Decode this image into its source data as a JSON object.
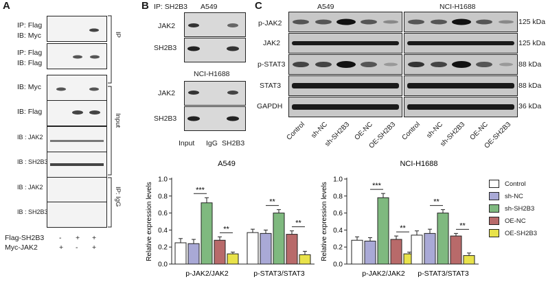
{
  "panels": {
    "a": "A",
    "b": "B",
    "c": "C"
  },
  "panelA": {
    "rows": [
      {
        "l1": "IP: Flag",
        "l2": "IB: Myc"
      },
      {
        "l1": "IP: Flag",
        "l2": "IB: Flag"
      },
      {
        "l1": "IB: Myc",
        "l2": ""
      },
      {
        "l1": "IB: Flag",
        "l2": ""
      },
      {
        "l1": "IB : JAK2",
        "l2": ""
      },
      {
        "l1": "IB : SH2B3",
        "l2": ""
      },
      {
        "l1": "IB : JAK2",
        "l2": ""
      },
      {
        "l1": "IB : SH2B3",
        "l2": ""
      }
    ],
    "bracket_ip": "IP",
    "bracket_input": "Input",
    "bracket_igg": "IP: IgG",
    "flag_label": "Flag-SH2B3",
    "myc_label": "Myc-JAK2",
    "flag_signs": [
      "-",
      "+",
      "+"
    ],
    "myc_signs": [
      "+",
      "-",
      "+"
    ]
  },
  "panelB": {
    "header": "IP: SH2B3",
    "cell1": "A549",
    "cell2": "NCI-H1688",
    "rows": [
      "JAK2",
      "SH2B3"
    ],
    "lanes": [
      "Input",
      "IgG",
      "SH2B3"
    ]
  },
  "panelC": {
    "cell1": "A549",
    "cell2": "NCI-H1688",
    "rows": [
      "p-JAK2",
      "JAK2",
      "p-STAT3",
      "STAT3",
      "GAPDH"
    ],
    "sizes": [
      "125 kDa",
      "125 kDa",
      "88 kDa",
      "88 kDa",
      "36 kDa"
    ],
    "lanes": [
      "Control",
      "sh-NC",
      "sh-SH2B3",
      "OE-NC",
      "OE-SH2B3"
    ]
  },
  "legend": [
    {
      "name": "Control",
      "color": "#ffffff"
    },
    {
      "name": "sh-NC",
      "color": "#a9a9d6"
    },
    {
      "name": "sh-SH2B3",
      "color": "#7fb97f"
    },
    {
      "name": "OE-NC",
      "color": "#b86a6a"
    },
    {
      "name": "OE-SH2B3",
      "color": "#e8e24a"
    }
  ],
  "chart_data": [
    {
      "type": "bar",
      "title": "A549",
      "ylabel": "Relative expression levels",
      "ylim": [
        0,
        1.0
      ],
      "yticks": [
        "0.0",
        "0.2",
        "0.4",
        "0.6",
        "0.8",
        "1.0"
      ],
      "categories": [
        "p-JAK2/JAK2",
        "p-STAT3/STAT3"
      ],
      "series": [
        {
          "name": "Control",
          "values": [
            0.25,
            0.37
          ]
        },
        {
          "name": "sh-NC",
          "values": [
            0.24,
            0.36
          ]
        },
        {
          "name": "sh-SH2B3",
          "values": [
            0.72,
            0.6
          ]
        },
        {
          "name": "OE-NC",
          "values": [
            0.28,
            0.35
          ]
        },
        {
          "name": "OE-SH2B3",
          "values": [
            0.12,
            0.11
          ]
        }
      ],
      "errors": [
        [
          0.05,
          0.04
        ],
        [
          0.05,
          0.04
        ],
        [
          0.06,
          0.04
        ],
        [
          0.04,
          0.04
        ],
        [
          0.02,
          0.04
        ]
      ],
      "annotations": [
        "***",
        "**",
        "**",
        "**"
      ]
    },
    {
      "type": "bar",
      "title": "NCI-H1688",
      "ylabel": "Relative expression levels",
      "ylim": [
        0,
        1.0
      ],
      "yticks": [
        "0.0",
        "0.2",
        "0.4",
        "0.6",
        "0.8",
        "1.0"
      ],
      "categories": [
        "p-JAK2/JAK2",
        "p-STAT3/STAT3"
      ],
      "series": [
        {
          "name": "Control",
          "values": [
            0.28,
            0.34
          ]
        },
        {
          "name": "sh-NC",
          "values": [
            0.27,
            0.36
          ]
        },
        {
          "name": "sh-SH2B3",
          "values": [
            0.78,
            0.6
          ]
        },
        {
          "name": "OE-NC",
          "values": [
            0.29,
            0.33
          ]
        },
        {
          "name": "OE-SH2B3",
          "values": [
            0.12,
            0.1
          ]
        }
      ],
      "errors": [
        [
          0.04,
          0.05
        ],
        [
          0.04,
          0.05
        ],
        [
          0.05,
          0.04
        ],
        [
          0.04,
          0.03
        ],
        [
          0.02,
          0.03
        ]
      ],
      "annotations": [
        "***",
        "**",
        "**",
        "**"
      ]
    }
  ]
}
